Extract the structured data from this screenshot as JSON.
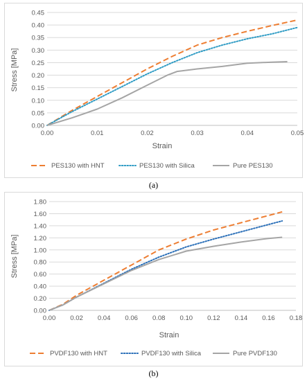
{
  "captions": {
    "a": "(a)",
    "b": "(b)"
  },
  "chart_data": [
    {
      "type": "line",
      "xlabel": "Strain",
      "ylabel": "Stress [MPa]",
      "xlim": [
        0,
        0.05
      ],
      "ylim": [
        0,
        0.45
      ],
      "x_ticks": [
        "0.00",
        "0.01",
        "0.02",
        "0.03",
        "0.04",
        "0.05"
      ],
      "y_ticks": [
        "0.00",
        "0.05",
        "0.10",
        "0.15",
        "0.20",
        "0.25",
        "0.30",
        "0.35",
        "0.40",
        "0.45"
      ],
      "grid": true,
      "legend": "bottom",
      "series": [
        {
          "name": "PES130 with HNT",
          "color": "#ed7d31",
          "style": "dashed",
          "x": [
            0,
            0.005,
            0.01,
            0.015,
            0.02,
            0.025,
            0.03,
            0.035,
            0.04,
            0.045,
            0.05
          ],
          "y": [
            0,
            0.06,
            0.115,
            0.17,
            0.225,
            0.275,
            0.32,
            0.35,
            0.375,
            0.398,
            0.42
          ]
        },
        {
          "name": "PES130 with Silica",
          "color": "#2e9bc4",
          "style": "dotted",
          "x": [
            0,
            0.005,
            0.01,
            0.015,
            0.02,
            0.025,
            0.03,
            0.035,
            0.04,
            0.045,
            0.05
          ],
          "y": [
            0,
            0.055,
            0.105,
            0.155,
            0.205,
            0.25,
            0.29,
            0.32,
            0.345,
            0.365,
            0.39
          ]
        },
        {
          "name": "Pure PES130",
          "color": "#a5a5a5",
          "style": "solid",
          "x": [
            0,
            0.005,
            0.01,
            0.015,
            0.02,
            0.024,
            0.026,
            0.03,
            0.035,
            0.04,
            0.045,
            0.048
          ],
          "y": [
            0,
            0.03,
            0.065,
            0.11,
            0.16,
            0.2,
            0.215,
            0.225,
            0.235,
            0.248,
            0.252,
            0.254
          ]
        }
      ]
    },
    {
      "type": "line",
      "xlabel": "Strain",
      "ylabel": "Stress [MPa]",
      "xlim": [
        0,
        0.18
      ],
      "ylim": [
        0,
        1.8
      ],
      "x_ticks": [
        "0.00",
        "0.02",
        "0.04",
        "0.06",
        "0.08",
        "0.10",
        "0.12",
        "0.14",
        "0.16",
        "0.18"
      ],
      "y_ticks": [
        "0.00",
        "0.20",
        "0.40",
        "0.60",
        "0.80",
        "1.00",
        "1.20",
        "1.40",
        "1.60",
        "1.80"
      ],
      "grid": true,
      "legend": "bottom",
      "series": [
        {
          "name": "PVDF130 with HNT",
          "color": "#ed7d31",
          "style": "dashed",
          "x": [
            0,
            0.01,
            0.02,
            0.04,
            0.06,
            0.08,
            0.1,
            0.12,
            0.14,
            0.16,
            0.17
          ],
          "y": [
            0,
            0.1,
            0.25,
            0.5,
            0.75,
            1.0,
            1.18,
            1.33,
            1.45,
            1.57,
            1.63
          ]
        },
        {
          "name": "PVDF130 with Silica",
          "color": "#2a6fb8",
          "style": "dotted",
          "x": [
            0,
            0.01,
            0.02,
            0.04,
            0.06,
            0.08,
            0.1,
            0.12,
            0.14,
            0.16,
            0.17
          ],
          "y": [
            0,
            0.09,
            0.22,
            0.45,
            0.68,
            0.88,
            1.05,
            1.18,
            1.3,
            1.42,
            1.48
          ]
        },
        {
          "name": "Pure PVDF130",
          "color": "#a5a5a5",
          "style": "solid",
          "x": [
            0,
            0.01,
            0.02,
            0.04,
            0.06,
            0.08,
            0.1,
            0.12,
            0.14,
            0.16,
            0.17
          ],
          "y": [
            0,
            0.09,
            0.22,
            0.44,
            0.66,
            0.84,
            0.98,
            1.06,
            1.13,
            1.19,
            1.21
          ]
        }
      ]
    }
  ]
}
